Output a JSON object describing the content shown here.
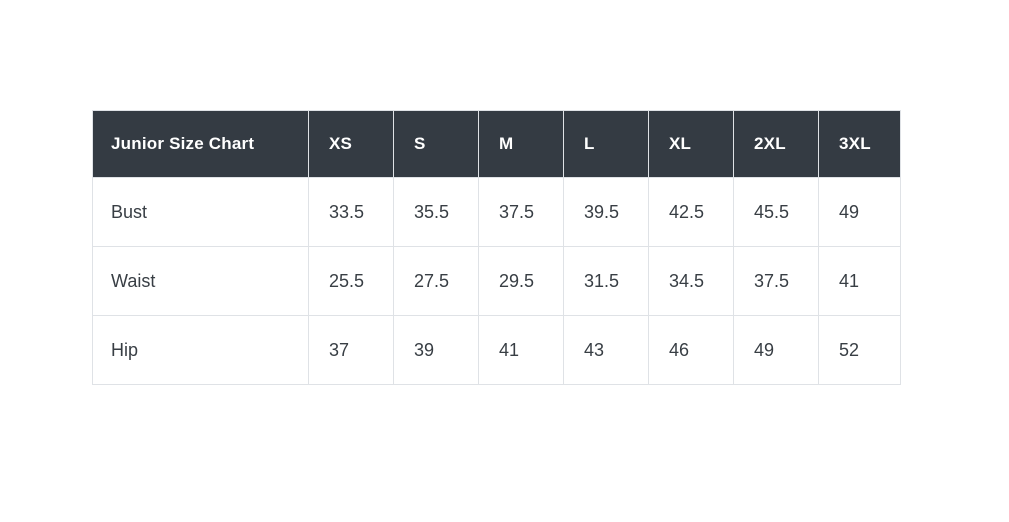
{
  "colors": {
    "page_background": "#ffffff",
    "header_background": "#343b43",
    "header_text": "#ffffff",
    "body_text": "#383e44",
    "border": "#dfe2e6"
  },
  "chart_data": {
    "type": "table",
    "title": "Junior Size Chart",
    "columns": [
      "XS",
      "S",
      "M",
      "L",
      "XL",
      "2XL",
      "3XL"
    ],
    "rows": [
      {
        "label": "Bust",
        "values": [
          "33.5",
          "35.5",
          "37.5",
          "39.5",
          "42.5",
          "45.5",
          "49"
        ]
      },
      {
        "label": "Waist",
        "values": [
          "25.5",
          "27.5",
          "29.5",
          "31.5",
          "34.5",
          "37.5",
          "41"
        ]
      },
      {
        "label": "Hip",
        "values": [
          "37",
          "39",
          "41",
          "43",
          "46",
          "49",
          "52"
        ]
      }
    ]
  }
}
